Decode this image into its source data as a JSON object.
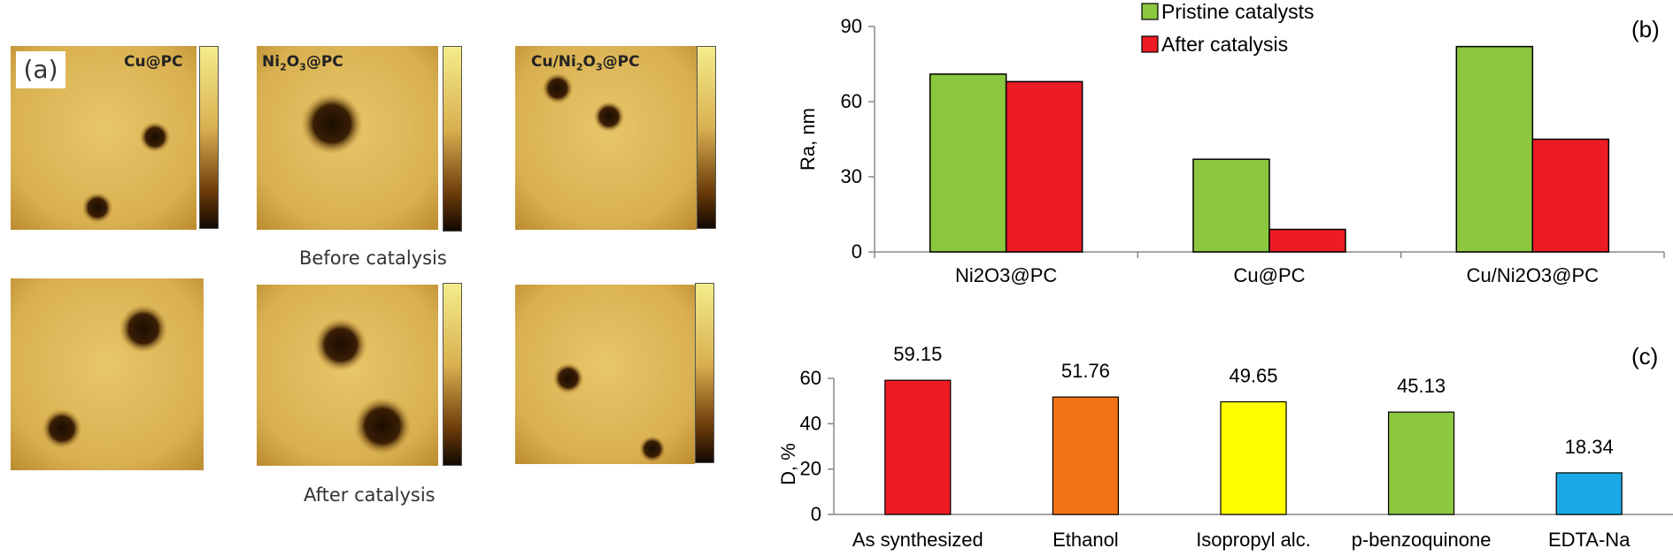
{
  "panel_a": {
    "badge": "(a)",
    "row_top_caption": "Before catalysis",
    "row_bottom_caption": "After catalysis",
    "labels": [
      {
        "pre": "Cu@PC",
        "sub": "",
        "post": ""
      },
      {
        "pre": "Ni",
        "sub": "2",
        "post": "O",
        "sub2": "3",
        "post2": "@PC"
      },
      {
        "pre": "Cu/Ni",
        "sub": "2",
        "post": "O",
        "sub2": "3",
        "post2": "@PC"
      }
    ]
  },
  "chart_data": [
    {
      "type": "bar",
      "panel": "(b)",
      "ylabel": "Ra, nm",
      "ylim": [
        0,
        90
      ],
      "yticks": [
        0,
        30,
        60,
        90
      ],
      "categories": [
        "Ni2O3@PC",
        "Cu@PC",
        "Cu/Ni2O3@PC"
      ],
      "series": [
        {
          "name": "Pristine catalysts",
          "color": "#8dc63f",
          "values": [
            71,
            37,
            82
          ]
        },
        {
          "name": "After catalysis",
          "color": "#ed1c24",
          "values": [
            68,
            9,
            45
          ]
        }
      ],
      "legend": "top-center",
      "grid": false
    },
    {
      "type": "bar",
      "panel": "(c)",
      "ylabel": "D, %",
      "ylim": [
        0,
        60
      ],
      "yticks": [
        0,
        20,
        40,
        60
      ],
      "categories": [
        "As synthesized",
        "Ethanol",
        "Isopropyl alc.",
        "p-benzoquinone",
        "EDTA-Na"
      ],
      "values": [
        59.15,
        51.76,
        49.65,
        45.13,
        18.34
      ],
      "value_labels": [
        "59.15",
        "51.76",
        "49.65",
        "45.13",
        "18.34"
      ],
      "colors": [
        "#ed1c24",
        "#f47216",
        "#ffff00",
        "#8dc63f",
        "#19a9e6"
      ],
      "grid": false
    }
  ]
}
